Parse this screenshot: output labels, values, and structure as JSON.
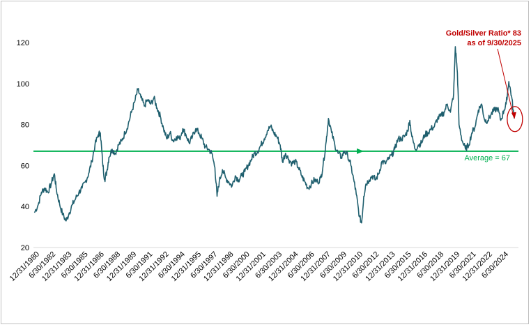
{
  "chart_data": {
    "type": "line",
    "title": "",
    "xlabel": "",
    "ylabel": "",
    "ylim": [
      20,
      120
    ],
    "yticks": [
      20,
      40,
      60,
      80,
      100,
      120
    ],
    "x_tick_labels": [
      "12/31/1980",
      "6/30/1982",
      "12/31/1983",
      "6/30/1985",
      "12/31/1986",
      "6/30/1988",
      "12/31/1989",
      "6/30/1991",
      "12/31/1992",
      "6/30/1994",
      "12/31/1995",
      "6/30/1997",
      "12/31/1998",
      "6/30/2000",
      "12/31/2001",
      "6/30/2003",
      "12/31/2004",
      "6/30/2006",
      "12/31/2007",
      "6/30/2009",
      "12/31/2010",
      "6/30/2012",
      "12/31/2013",
      "6/30/2015",
      "12/31/2016",
      "6/30/2018",
      "12/31/2019",
      "6/30/2021",
      "12/31/2022",
      "6/30/2024"
    ],
    "grid": false,
    "series": [
      {
        "name": "",
        "color": "#1f5f6e",
        "points": [
          [
            1980.95,
            37
          ],
          [
            1981.3,
            41
          ],
          [
            1981.6,
            47
          ],
          [
            1981.9,
            49
          ],
          [
            1982.2,
            47
          ],
          [
            1982.5,
            51
          ],
          [
            1982.8,
            56
          ],
          [
            1983.0,
            48
          ],
          [
            1983.3,
            41
          ],
          [
            1983.6,
            36
          ],
          [
            1983.9,
            33
          ],
          [
            1984.2,
            37
          ],
          [
            1984.5,
            41
          ],
          [
            1984.8,
            44
          ],
          [
            1985.1,
            47
          ],
          [
            1985.4,
            49
          ],
          [
            1985.7,
            52
          ],
          [
            1986.0,
            56
          ],
          [
            1986.3,
            62
          ],
          [
            1986.6,
            70
          ],
          [
            1986.9,
            75
          ],
          [
            1987.1,
            76
          ],
          [
            1987.3,
            62
          ],
          [
            1987.5,
            53
          ],
          [
            1987.7,
            57
          ],
          [
            1987.9,
            64
          ],
          [
            1988.2,
            68
          ],
          [
            1988.5,
            66
          ],
          [
            1988.8,
            70
          ],
          [
            1989.1,
            72
          ],
          [
            1989.4,
            76
          ],
          [
            1989.7,
            80
          ],
          [
            1990.0,
            86
          ],
          [
            1990.3,
            91
          ],
          [
            1990.6,
            97
          ],
          [
            1990.9,
            93
          ],
          [
            1991.2,
            89
          ],
          [
            1991.5,
            92
          ],
          [
            1991.8,
            90
          ],
          [
            1992.1,
            93
          ],
          [
            1992.4,
            88
          ],
          [
            1992.7,
            84
          ],
          [
            1993.0,
            78
          ],
          [
            1993.3,
            73
          ],
          [
            1993.6,
            76
          ],
          [
            1993.9,
            72
          ],
          [
            1994.2,
            74
          ],
          [
            1994.5,
            73
          ],
          [
            1994.8,
            78
          ],
          [
            1995.1,
            75
          ],
          [
            1995.4,
            71
          ],
          [
            1995.7,
            74
          ],
          [
            1996.0,
            78
          ],
          [
            1996.3,
            76
          ],
          [
            1996.6,
            73
          ],
          [
            1996.9,
            69
          ],
          [
            1997.2,
            68
          ],
          [
            1997.5,
            66
          ],
          [
            1997.8,
            59
          ],
          [
            1998.0,
            45
          ],
          [
            1998.2,
            52
          ],
          [
            1998.5,
            58
          ],
          [
            1998.8,
            54
          ],
          [
            1999.1,
            52
          ],
          [
            1999.4,
            50
          ],
          [
            1999.7,
            55
          ],
          [
            2000.0,
            53
          ],
          [
            2000.3,
            55
          ],
          [
            2000.6,
            57
          ],
          [
            2000.9,
            60
          ],
          [
            2001.2,
            63
          ],
          [
            2001.5,
            66
          ],
          [
            2001.8,
            67
          ],
          [
            2002.1,
            70
          ],
          [
            2002.4,
            73
          ],
          [
            2002.7,
            77
          ],
          [
            2003.0,
            79
          ],
          [
            2003.3,
            76
          ],
          [
            2003.6,
            74
          ],
          [
            2003.9,
            70
          ],
          [
            2004.1,
            62
          ],
          [
            2004.4,
            66
          ],
          [
            2004.7,
            63
          ],
          [
            2005.0,
            61
          ],
          [
            2005.3,
            62
          ],
          [
            2005.6,
            59
          ],
          [
            2005.9,
            55
          ],
          [
            2006.2,
            52
          ],
          [
            2006.5,
            49
          ],
          [
            2006.8,
            51
          ],
          [
            2007.1,
            53
          ],
          [
            2007.4,
            52
          ],
          [
            2007.7,
            54
          ],
          [
            2007.9,
            60
          ],
          [
            2008.2,
            72
          ],
          [
            2008.4,
            83
          ],
          [
            2008.7,
            76
          ],
          [
            2009.0,
            70
          ],
          [
            2009.3,
            66
          ],
          [
            2009.6,
            64
          ],
          [
            2009.9,
            67
          ],
          [
            2010.2,
            65
          ],
          [
            2010.5,
            60
          ],
          [
            2010.8,
            52
          ],
          [
            2011.0,
            46
          ],
          [
            2011.3,
            35
          ],
          [
            2011.5,
            32
          ],
          [
            2011.7,
            45
          ],
          [
            2011.9,
            51
          ],
          [
            2012.2,
            53
          ],
          [
            2012.5,
            55
          ],
          [
            2012.8,
            53
          ],
          [
            2013.1,
            56
          ],
          [
            2013.4,
            62
          ],
          [
            2013.7,
            61
          ],
          [
            2014.0,
            63
          ],
          [
            2014.3,
            65
          ],
          [
            2014.6,
            68
          ],
          [
            2014.9,
            73
          ],
          [
            2015.2,
            73
          ],
          [
            2015.5,
            74
          ],
          [
            2015.8,
            77
          ],
          [
            2016.0,
            82
          ],
          [
            2016.2,
            74
          ],
          [
            2016.5,
            68
          ],
          [
            2016.8,
            70
          ],
          [
            2017.1,
            71
          ],
          [
            2017.4,
            75
          ],
          [
            2017.7,
            76
          ],
          [
            2018.0,
            78
          ],
          [
            2018.3,
            79
          ],
          [
            2018.6,
            83
          ],
          [
            2018.9,
            84
          ],
          [
            2019.2,
            86
          ],
          [
            2019.5,
            90
          ],
          [
            2019.8,
            86
          ],
          [
            2020.1,
            95
          ],
          [
            2020.25,
            118
          ],
          [
            2020.45,
            105
          ],
          [
            2020.6,
            80
          ],
          [
            2020.9,
            72
          ],
          [
            2021.2,
            68
          ],
          [
            2021.5,
            70
          ],
          [
            2021.8,
            76
          ],
          [
            2022.1,
            79
          ],
          [
            2022.4,
            87
          ],
          [
            2022.7,
            90
          ],
          [
            2023.0,
            82
          ],
          [
            2023.3,
            82
          ],
          [
            2023.6,
            85
          ],
          [
            2023.9,
            87
          ],
          [
            2024.2,
            88
          ],
          [
            2024.5,
            82
          ],
          [
            2024.8,
            87
          ],
          [
            2025.0,
            90
          ],
          [
            2025.25,
            101
          ],
          [
            2025.5,
            94
          ],
          [
            2025.75,
            83
          ]
        ]
      }
    ],
    "average": {
      "value": 67,
      "label": "Average = 67",
      "color": "#00b050"
    },
    "annotation": {
      "line1": "Gold/Silver Ratio* 83",
      "line2": "as of 9/30/2025",
      "color": "#c00000",
      "point": [
        2025.75,
        83
      ]
    },
    "xlim": [
      1980.85,
      2026.15
    ]
  }
}
